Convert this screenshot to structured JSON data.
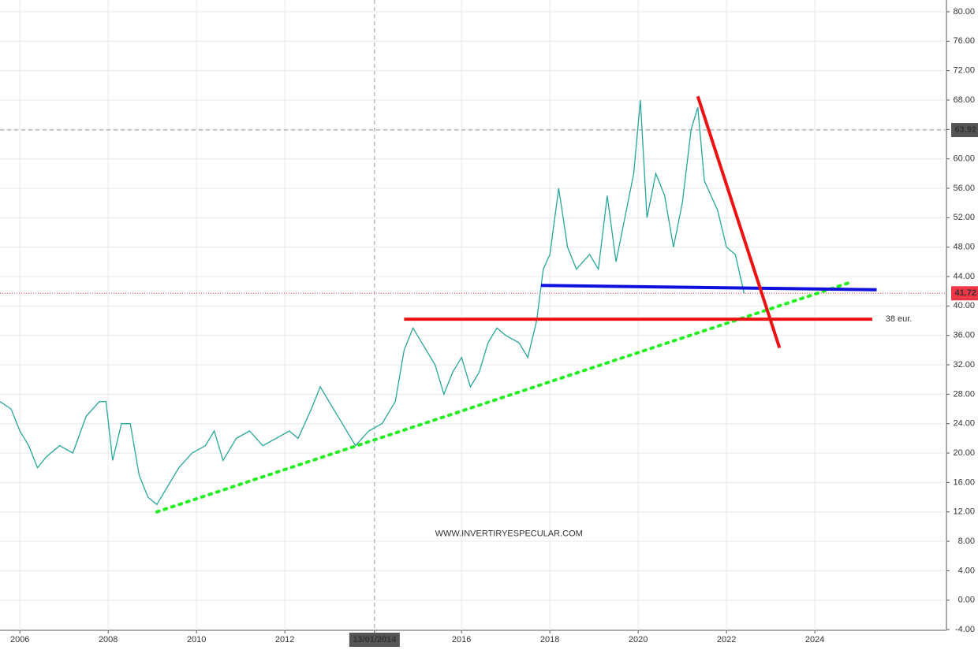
{
  "chart_data": {
    "type": "line",
    "x": [
      2005.55,
      2005.8,
      2006.0,
      2006.2,
      2006.4,
      2006.6,
      2006.9,
      2007.2,
      2007.5,
      2007.8,
      2007.95,
      2008.1,
      2008.3,
      2008.5,
      2008.7,
      2008.9,
      2009.1,
      2009.3,
      2009.6,
      2009.9,
      2010.2,
      2010.4,
      2010.6,
      2010.9,
      2011.2,
      2011.5,
      2011.8,
      2012.1,
      2012.3,
      2012.6,
      2012.8,
      2013.0,
      2013.3,
      2013.6,
      2013.9,
      2014.2,
      2014.5,
      2014.7,
      2014.9,
      2015.2,
      2015.4,
      2015.6,
      2015.8,
      2016.0,
      2016.2,
      2016.4,
      2016.6,
      2016.8,
      2017.0,
      2017.3,
      2017.5,
      2017.7,
      2017.85,
      2018.0,
      2018.2,
      2018.4,
      2018.6,
      2018.9,
      2019.1,
      2019.3,
      2019.5,
      2019.7,
      2019.9,
      2020.05,
      2020.2,
      2020.4,
      2020.6,
      2020.8,
      2021.0,
      2021.2,
      2021.35,
      2021.5,
      2021.8,
      2022.0,
      2022.2,
      2022.4
    ],
    "series": [
      {
        "color": "#26a69a",
        "values": [
          27,
          26,
          23,
          21,
          18,
          19.5,
          21,
          20,
          25,
          27,
          27,
          19,
          24,
          24,
          17,
          14,
          13,
          15,
          18,
          20,
          21,
          23,
          19,
          22,
          23,
          21,
          22,
          23,
          22,
          26,
          29,
          27,
          24,
          21,
          23,
          24,
          27,
          34,
          37,
          34,
          32,
          28,
          31,
          33,
          29,
          31,
          35,
          37,
          36,
          35,
          33,
          38,
          45,
          47,
          56,
          48,
          45,
          47,
          45,
          55,
          46,
          52,
          58,
          68,
          52,
          58,
          55,
          48,
          54,
          64,
          67,
          57,
          53,
          48,
          47,
          41.72
        ]
      }
    ],
    "xlim": [
      2005.55,
      2026.98
    ],
    "ylim": [
      -4.1,
      81.6
    ],
    "xticks": [
      2006,
      2008,
      2010,
      2012,
      {
        "value": 2014.03,
        "label": "13/01/2014"
      },
      2016,
      2018,
      2020,
      2022,
      2024
    ],
    "yticks": [
      {
        "value": -4,
        "label": "-4.00"
      },
      {
        "value": 0,
        "label": "0.00"
      },
      {
        "value": 4,
        "label": "4.00"
      },
      {
        "value": 8,
        "label": "8.00"
      },
      {
        "value": 12,
        "label": "12.00"
      },
      {
        "value": 16,
        "label": "16.00"
      },
      {
        "value": 20,
        "label": "20.00"
      },
      {
        "value": 24,
        "label": "24.00"
      },
      {
        "value": 28,
        "label": "28.00"
      },
      {
        "value": 32,
        "label": "32.00"
      },
      {
        "value": 36,
        "label": "36.00"
      },
      {
        "value": 40,
        "label": "40.00"
      },
      {
        "value": 44,
        "label": "44.00"
      },
      {
        "value": 48,
        "label": "48.00"
      },
      {
        "value": 52,
        "label": "52.00"
      },
      {
        "value": 56,
        "label": "56.00"
      },
      {
        "value": 60,
        "label": "60.00"
      },
      {
        "value": 64,
        "label": "64.00"
      },
      {
        "value": 68,
        "label": "68.00"
      },
      {
        "value": 72,
        "label": "72.00"
      },
      {
        "value": 76,
        "label": "76.00"
      },
      {
        "value": 80,
        "label": "80.00"
      }
    ],
    "grid": true,
    "crosshair": {
      "x": 2014.03,
      "y": 63.92,
      "label": "63.92"
    },
    "last_price": {
      "value": 41.72,
      "label": "41.72",
      "color": "#f23645"
    },
    "drawings": [
      {
        "color": "#22ee22",
        "dotted": true,
        "x": [
          2009.1,
          2024.8
        ],
        "y": [
          12,
          43.2
        ]
      },
      {
        "color": "#1010dd",
        "dotted": false,
        "x": [
          2017.8,
          2025.4
        ],
        "y": [
          42.8,
          42.2
        ]
      },
      {
        "color": "#ee1111",
        "dotted": false,
        "x": [
          2014.7,
          2025.3
        ],
        "y": [
          38.2,
          38.2
        ]
      },
      {
        "color": "#ee1111",
        "dotted": false,
        "x": [
          2021.35,
          2023.2
        ],
        "y": [
          68.5,
          34.3
        ]
      }
    ],
    "annotations": [
      {
        "text": "38 eur.",
        "x": 2025.6,
        "y": 38.2
      },
      {
        "text": "WWW.INVERTIRYESPECULAR.COM",
        "x": 2015.4,
        "y": 9
      }
    ]
  }
}
